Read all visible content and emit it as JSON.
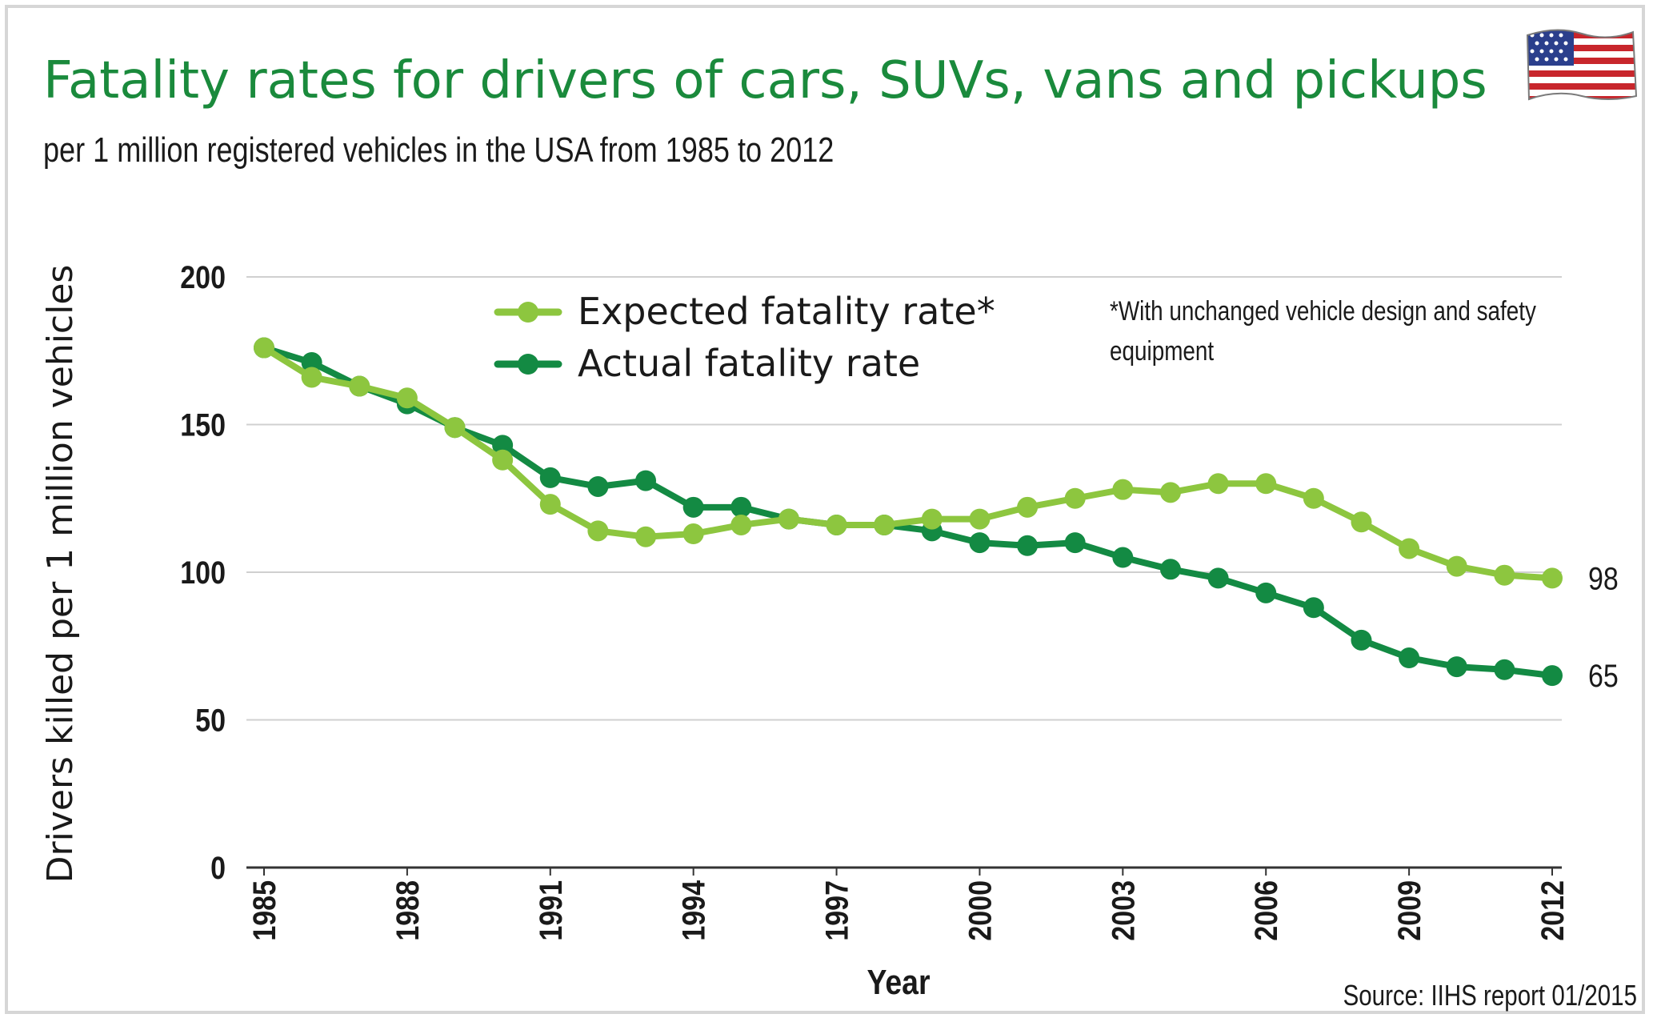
{
  "chart_data": {
    "type": "line",
    "title": "Fatality rates for drivers of cars, SUVs, vans and pickups",
    "subtitle": "per 1 million registered vehicles in the USA from 1985 to 2012",
    "xlabel": "Year",
    "ylabel": "Drivers killed per 1 million vehicles",
    "ylim": [
      0,
      200
    ],
    "yticks": [
      0,
      50,
      100,
      150,
      200
    ],
    "xticks": [
      1985,
      1988,
      1991,
      1994,
      1997,
      2000,
      2003,
      2006,
      2009,
      2012
    ],
    "x": [
      1985,
      1986,
      1987,
      1988,
      1989,
      1990,
      1991,
      1992,
      1993,
      1994,
      1995,
      1996,
      1997,
      1998,
      1999,
      2000,
      2001,
      2002,
      2003,
      2004,
      2005,
      2006,
      2007,
      2008,
      2009,
      2010,
      2011,
      2012
    ],
    "series": [
      {
        "name": "Expected fatality rate*",
        "color": "#8dc63f",
        "values": [
          176,
          166,
          163,
          159,
          149,
          138,
          123,
          114,
          112,
          113,
          116,
          118,
          116,
          116,
          118,
          118,
          122,
          125,
          128,
          127,
          130,
          130,
          125,
          117,
          108,
          102,
          99,
          98
        ]
      },
      {
        "name": "Actual fatality rate",
        "color": "#138a43",
        "values": [
          176,
          171,
          163,
          157,
          149,
          143,
          132,
          129,
          131,
          122,
          122,
          118,
          116,
          116,
          114,
          110,
          109,
          110,
          105,
          101,
          98,
          93,
          88,
          77,
          71,
          68,
          67,
          65
        ]
      }
    ],
    "end_labels": [
      "98",
      "65"
    ],
    "legend_position": "top-center",
    "footnote": "*With unchanged vehicle design and safety equipment",
    "source": "Source: IIHS report 01/2015",
    "grid": true
  },
  "colors": {
    "title": "#1a8a3c",
    "grid": "#d0d0d0",
    "axis": "#1a1a1a"
  },
  "icon": "usa-flag-icon"
}
